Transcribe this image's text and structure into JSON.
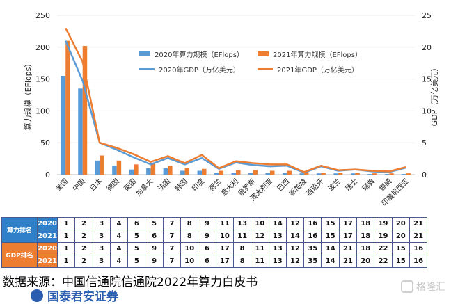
{
  "chart_data": {
    "type": "bar",
    "categories": [
      "美国",
      "中国",
      "日本",
      "德国",
      "英国",
      "加拿大",
      "法国",
      "韩国",
      "印度",
      "荷兰",
      "意大利",
      "俄罗斯",
      "澳大利亚",
      "巴西",
      "新加坡",
      "西班牙",
      "波兰",
      "瑞士",
      "瑞典",
      "挪威",
      "印度尼西亚"
    ],
    "y_left": {
      "label": "算力规模（EFlops）",
      "ticks": [
        "0",
        "50",
        "100",
        "150",
        "200",
        "250"
      ],
      "range": [
        0,
        250
      ]
    },
    "y_right": {
      "label": "GDP（万亿美元）",
      "ticks": [
        "0",
        "5",
        "10",
        "15",
        "20",
        "25"
      ],
      "range": [
        0,
        25
      ]
    },
    "series": [
      {
        "name": "2020年算力规模（EFlops）",
        "kind": "bar",
        "axis": "left",
        "color": "#5b9bd5",
        "values": [
          155,
          135,
          22,
          14,
          8,
          10,
          10,
          6,
          6,
          3,
          3,
          3,
          3,
          3,
          2,
          2,
          2,
          2,
          1,
          1,
          1
        ]
      },
      {
        "name": "2021年算力规模（EFlops）",
        "kind": "bar",
        "axis": "left",
        "color": "#ed7d31",
        "values": [
          210,
          202,
          30,
          22,
          16,
          17,
          14,
          10,
          9,
          6,
          7,
          7,
          6,
          6,
          4,
          3,
          3,
          3,
          2,
          2,
          2
        ]
      },
      {
        "name": "2020年GDP（万亿美元）",
        "kind": "line",
        "axis": "right",
        "color": "#5b9bd5",
        "values": [
          21.0,
          14.7,
          5.0,
          3.9,
          2.7,
          1.6,
          2.6,
          1.6,
          2.6,
          0.9,
          1.9,
          1.5,
          1.3,
          1.4,
          0.3,
          1.3,
          0.6,
          0.8,
          0.5,
          0.4,
          1.1
        ]
      },
      {
        "name": "2021年GDP（万亿美元）",
        "kind": "line",
        "axis": "right",
        "color": "#ed7d31",
        "values": [
          23.0,
          17.7,
          5.0,
          4.2,
          3.2,
          2.0,
          2.9,
          1.8,
          3.1,
          1.0,
          2.1,
          1.8,
          1.6,
          1.6,
          0.4,
          1.4,
          0.7,
          0.8,
          0.6,
          0.5,
          1.2
        ]
      }
    ]
  },
  "rank_table": {
    "groups": [
      {
        "label": "算力排名",
        "rows": [
          {
            "year": "2020",
            "values": [
              "1",
              "2",
              "3",
              "4",
              "6",
              "5",
              "7",
              "8",
              "9",
              "11",
              "13",
              "10",
              "14",
              "12",
              "16",
              "15",
              "17",
              "18",
              "19",
              "20",
              "21"
            ]
          },
          {
            "year": "2021",
            "values": [
              "1",
              "2",
              "3",
              "4",
              "5",
              "6",
              "7",
              "8",
              "9",
              "10",
              "11",
              "12",
              "13",
              "14",
              "16",
              "15",
              "17",
              "18",
              "19",
              "20",
              "21"
            ]
          }
        ]
      },
      {
        "label": "GDP排名",
        "rows": [
          {
            "year": "2020",
            "values": [
              "1",
              "2",
              "3",
              "4",
              "5",
              "9",
              "7",
              "10",
              "6",
              "17",
              "8",
              "11",
              "13",
              "12",
              "35",
              "14",
              "21",
              "18",
              "22",
              "15",
              "16"
            ]
          },
          {
            "year": "2021",
            "values": [
              "1",
              "2",
              "3",
              "4",
              "5",
              "9",
              "7",
              "10",
              "6",
              "17",
              "8",
              "11",
              "13",
              "12",
              "35",
              "14",
              "21",
              "20",
              "22",
              "15",
              "16"
            ]
          }
        ]
      }
    ]
  },
  "source_note": "数据来源：中国信通院信通院2022年算力白皮书",
  "logo_text": "国泰君安证券",
  "watermark_text": "格隆汇"
}
